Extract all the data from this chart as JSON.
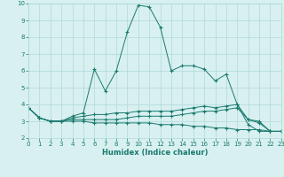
{
  "xlabel": "Humidex (Indice chaleur)",
  "x": [
    0,
    1,
    2,
    3,
    4,
    5,
    6,
    7,
    8,
    9,
    10,
    11,
    12,
    13,
    14,
    15,
    16,
    17,
    18,
    19,
    20,
    21,
    22,
    23
  ],
  "line1": [
    3.8,
    3.2,
    3.0,
    3.0,
    3.3,
    3.5,
    6.1,
    4.8,
    6.0,
    8.3,
    9.9,
    9.8,
    8.6,
    6.0,
    6.3,
    6.3,
    6.1,
    5.4,
    5.8,
    4.0,
    2.8,
    2.4,
    2.4,
    2.4
  ],
  "line2": [
    3.8,
    3.2,
    3.0,
    3.0,
    3.1,
    3.1,
    3.1,
    3.1,
    3.1,
    3.2,
    3.3,
    3.3,
    3.3,
    3.3,
    3.4,
    3.5,
    3.6,
    3.6,
    3.7,
    3.8,
    3.1,
    3.0,
    2.4,
    2.4
  ],
  "line3": [
    3.8,
    3.2,
    3.0,
    3.0,
    3.0,
    3.0,
    2.9,
    2.9,
    2.9,
    2.9,
    2.9,
    2.9,
    2.8,
    2.8,
    2.8,
    2.7,
    2.7,
    2.6,
    2.6,
    2.5,
    2.5,
    2.5,
    2.4,
    2.4
  ],
  "line4": [
    3.8,
    3.2,
    3.0,
    3.0,
    3.2,
    3.3,
    3.4,
    3.4,
    3.5,
    3.5,
    3.6,
    3.6,
    3.6,
    3.6,
    3.7,
    3.8,
    3.9,
    3.8,
    3.9,
    4.0,
    3.1,
    2.9,
    2.4,
    2.4
  ],
  "line_color": "#1a7a6e",
  "bg_color": "#d8f0f0",
  "grid_color": "#b0d8d8",
  "ylim": [
    2,
    10
  ],
  "xlim": [
    0,
    23
  ],
  "yticks": [
    2,
    3,
    4,
    5,
    6,
    7,
    8,
    9,
    10
  ],
  "xticks": [
    0,
    1,
    2,
    3,
    4,
    5,
    6,
    7,
    8,
    9,
    10,
    11,
    12,
    13,
    14,
    15,
    16,
    17,
    18,
    19,
    20,
    21,
    22,
    23
  ]
}
